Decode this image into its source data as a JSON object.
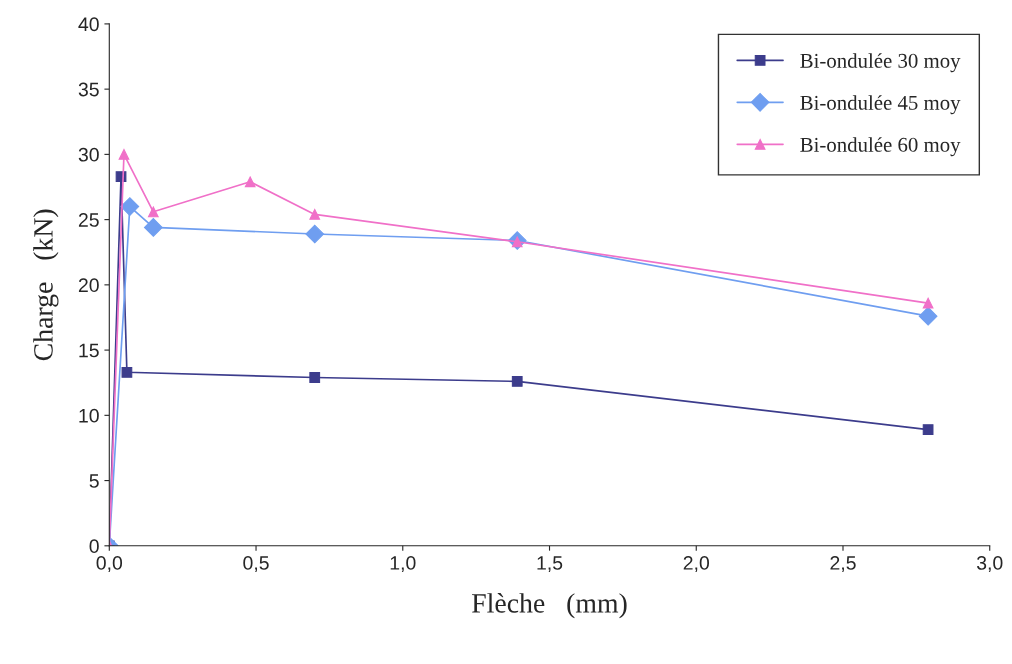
{
  "chart_data": {
    "type": "line",
    "xlabel": "Flèche   (mm)",
    "ylabel": "Charge   (kN)",
    "xlim": [
      0,
      3.0
    ],
    "ylim": [
      0,
      40
    ],
    "xticks": [
      {
        "value": 0,
        "label": "0,0"
      },
      {
        "value": 0.5,
        "label": "0,5"
      },
      {
        "value": 1.0,
        "label": "1,0"
      },
      {
        "value": 1.5,
        "label": "1,5"
      },
      {
        "value": 2.0,
        "label": "2,0"
      },
      {
        "value": 2.5,
        "label": "2,5"
      },
      {
        "value": 3.0,
        "label": "3,0"
      }
    ],
    "yticks": [
      0,
      5,
      10,
      15,
      20,
      25,
      30,
      35,
      40
    ],
    "grid": false,
    "legend": "top right",
    "line_style": "solid",
    "series": [
      {
        "name": "Bi-ondulée 30 moy",
        "color": "#3c3c8c",
        "marker": "square",
        "x": [
          0,
          0.04,
          0.06,
          0.7,
          1.39,
          2.79
        ],
        "values": [
          0,
          28.3,
          13.3,
          12.9,
          12.6,
          8.9
        ]
      },
      {
        "name": "Bi-ondulée 45 moy",
        "color": "#6f9ef0",
        "marker": "diamond",
        "x": [
          0,
          0.07,
          0.15,
          0.7,
          1.39,
          2.79
        ],
        "values": [
          0,
          26.0,
          24.4,
          23.9,
          23.4,
          17.6
        ]
      },
      {
        "name": "Bi-ondulée 60 moy",
        "color": "#f070c8",
        "marker": "triangle",
        "x": [
          0,
          0.05,
          0.15,
          0.48,
          0.7,
          1.39,
          2.79
        ],
        "values": [
          0,
          30.0,
          25.6,
          27.9,
          25.4,
          23.3,
          18.6
        ]
      }
    ]
  }
}
